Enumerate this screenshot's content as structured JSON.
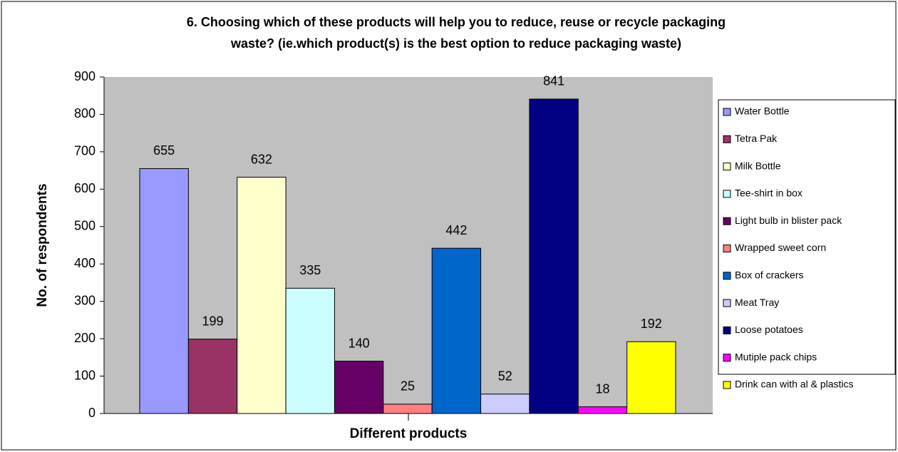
{
  "chart_data": {
    "type": "bar",
    "title": [
      "6. Choosing which of these products will help you to reduce, reuse or recycle packaging",
      "waste? (ie.which product(s) is the best option to reduce packaging waste)"
    ],
    "x_label": "Different products",
    "y_label": "No. of respondents",
    "ylim": [
      0,
      900
    ],
    "yticks": [
      0,
      100,
      200,
      300,
      400,
      500,
      600,
      700,
      800,
      900
    ],
    "legend": "right",
    "series": [
      {
        "name": "Water Bottle",
        "color": "#9999ff",
        "values": [
          655
        ]
      },
      {
        "name": "Tetra Pak",
        "color": "#993366",
        "values": [
          199
        ]
      },
      {
        "name": "Milk Bottle",
        "color": "#ffffcc",
        "values": [
          632
        ]
      },
      {
        "name": "Tee-shirt in box",
        "color": "#ccffff",
        "values": [
          335
        ]
      },
      {
        "name": "Light bulb in blister pack",
        "color": "#660066",
        "values": [
          140
        ]
      },
      {
        "name": "Wrapped sweet corn",
        "color": "#ff8080",
        "values": [
          25
        ]
      },
      {
        "name": "Box of crackers",
        "color": "#0066cc",
        "values": [
          442
        ]
      },
      {
        "name": "Meat Tray",
        "color": "#ccccff",
        "values": [
          52
        ]
      },
      {
        "name": "Loose potatoes",
        "color": "#000080",
        "values": [
          841
        ]
      },
      {
        "name": "Mutiple pack chips",
        "color": "#ff00ff",
        "values": [
          18
        ]
      },
      {
        "name": "Drink can with al & plastics",
        "color": "#ffff00",
        "values": [
          192
        ]
      }
    ]
  }
}
